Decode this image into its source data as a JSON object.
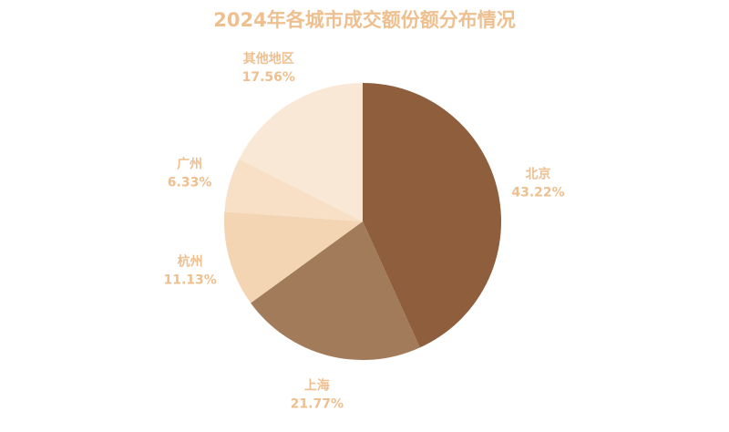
{
  "chart_data": {
    "type": "pie",
    "title": "2024年各城市成交额份额分布情况",
    "categories": [
      "北京",
      "上海",
      "杭州",
      "广州",
      "其他地区"
    ],
    "values": [
      43.22,
      21.77,
      11.13,
      6.33,
      17.56
    ],
    "value_labels": [
      "43.22%",
      "21.77%",
      "11.13%",
      "6.33%",
      "17.56%"
    ],
    "colors": [
      "#8f5e3c",
      "#a27b5a",
      "#f3d5b4",
      "#f7e0c6",
      "#fae8d6"
    ]
  }
}
